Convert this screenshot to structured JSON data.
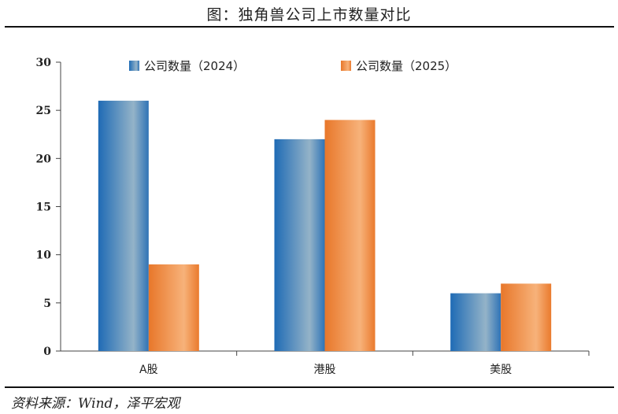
{
  "title": "图：独角兽公司上市数量对比",
  "source": "资料来源：Wind，泽平宏观",
  "colors": {
    "series_2024": "#2e75b6",
    "series_2025": "#ed7d31"
  },
  "chart_data": {
    "type": "bar",
    "title": "图：独角兽公司上市数量对比",
    "categories": [
      "A股",
      "港股",
      "美股"
    ],
    "series": [
      {
        "name": "公司数量（2024）",
        "values": [
          26,
          22,
          6
        ]
      },
      {
        "name": "公司数量（2025）",
        "values": [
          9,
          24,
          7
        ]
      }
    ],
    "ylim": [
      0,
      30
    ],
    "yticks": [
      0,
      5,
      10,
      15,
      20,
      25,
      30
    ],
    "xlabel": "",
    "ylabel": "",
    "grid": false,
    "legend": "top"
  }
}
